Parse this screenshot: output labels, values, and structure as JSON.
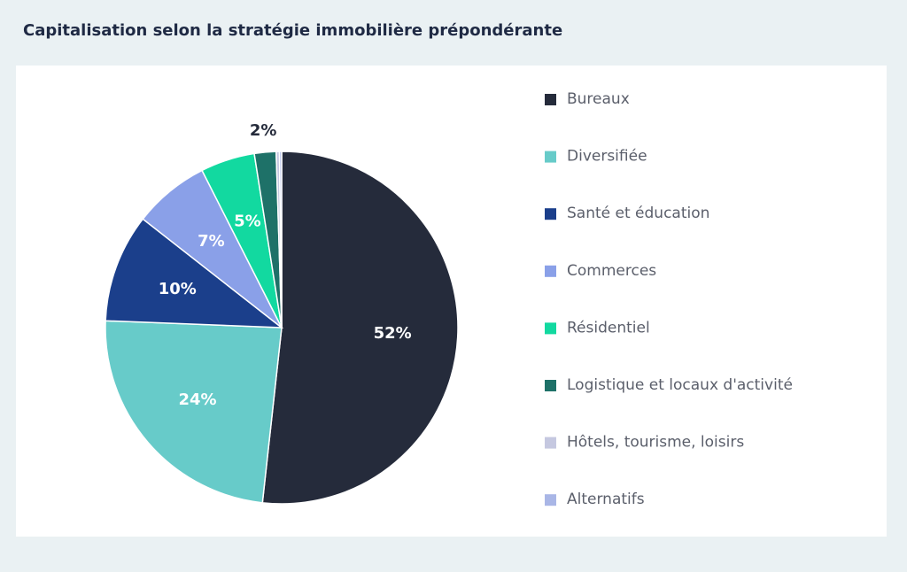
{
  "chart_data": {
    "type": "pie",
    "title": "Capitalisation selon la stratégie immobilière prépondérante",
    "categories": [
      "Bureaux",
      "Diversifiée",
      "Santé et éducation",
      "Commerces",
      "Résidentiel",
      "Logistique et locaux d'activité",
      "Hôtels, tourisme, loisirs",
      "Alternatifs"
    ],
    "values": [
      52,
      24,
      10,
      7,
      5,
      2,
      0.3,
      0.2
    ],
    "value_labels": [
      "52%",
      "24%",
      "10%",
      "7%",
      "5%",
      "2%",
      null,
      null
    ],
    "colors": [
      "#252b3b",
      "#67cbc9",
      "#1b3f8b",
      "#8aa0e8",
      "#12d9a0",
      "#1e7168",
      "#c5c8e0",
      "#a9b6e6"
    ],
    "legend": "right"
  }
}
